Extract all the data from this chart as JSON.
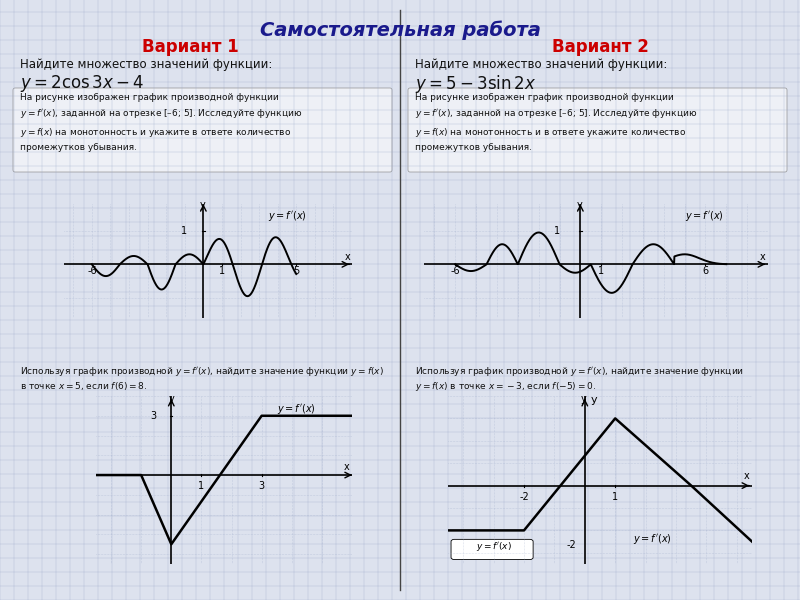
{
  "title": "Самостоятельная работа",
  "title_color": "#1a1a8c",
  "title_fontsize": 14,
  "bg_color": "#dde2ee",
  "grid_color": "#9aa8c8",
  "panel_color": "#e8ecf5",
  "variant1_title": "Вариант 1",
  "variant2_title": "Вариант 2",
  "variant_color": "#cc0000",
  "variant_fontsize": 12,
  "divider_color": "#444444",
  "text_color": "#111111"
}
